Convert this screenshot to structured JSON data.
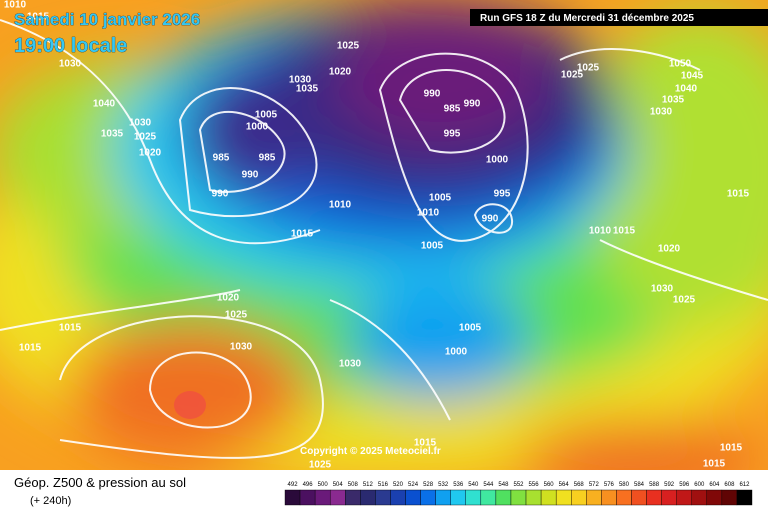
{
  "header": {
    "date": "Samedi 10 janvier 2026",
    "time": "19:00 locale",
    "run": "Run GFS 18 Z du Mercredi 31 décembre 2025"
  },
  "copyright": "Copyright © 2025 Meteociel.fr",
  "footer": {
    "title": "Géop. Z500 & pression au sol",
    "lead": "(+ 240h)"
  },
  "colorbar": {
    "labels": [
      492,
      496,
      500,
      504,
      508,
      512,
      516,
      520,
      524,
      528,
      532,
      536,
      540,
      544,
      548,
      552,
      556,
      560,
      564,
      568,
      572,
      576,
      580,
      584,
      588,
      592,
      596,
      600,
      604,
      608,
      612
    ]
  },
  "isobar_labels": [
    1010,
    1015,
    1030,
    1040,
    1035,
    1030,
    1025,
    1020,
    1025,
    1020,
    1030,
    1035,
    1005,
    1000,
    985,
    985,
    990,
    990,
    990,
    985,
    990,
    995,
    1000,
    995,
    990,
    1005,
    1010,
    1005,
    1010,
    1015,
    1020,
    1025,
    1030,
    1015,
    1015,
    1030,
    1005,
    1000,
    1015,
    1025,
    1025,
    1025,
    1050,
    1045,
    1040,
    1035,
    1030,
    1015,
    1010,
    1015,
    1020,
    1030,
    1025,
    1015,
    1015
  ]
}
